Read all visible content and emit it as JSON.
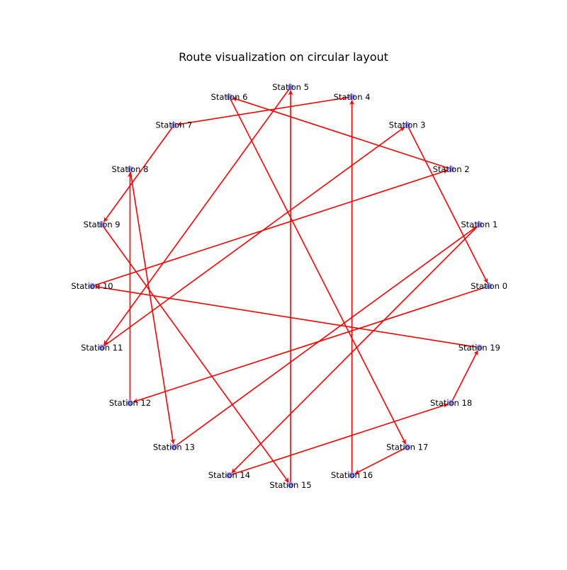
{
  "title": "Route visualization on circular layout",
  "colors": {
    "node_fill": "#8080ff",
    "edge": "#ff0000",
    "background": "#ffffff"
  },
  "layout": "circular",
  "nodes": [
    "Station 0",
    "Station 1",
    "Station 2",
    "Station 3",
    "Station 4",
    "Station 5",
    "Station 6",
    "Station 7",
    "Station 8",
    "Station 9",
    "Station 10",
    "Station 11",
    "Station 12",
    "Station 13",
    "Station 14",
    "Station 15",
    "Station 16",
    "Station 17",
    "Station 18",
    "Station 19"
  ],
  "route": [
    [
      0,
      12
    ],
    [
      12,
      8
    ],
    [
      8,
      13
    ],
    [
      13,
      1
    ],
    [
      1,
      14
    ],
    [
      14,
      18
    ],
    [
      18,
      19
    ],
    [
      19,
      10
    ],
    [
      10,
      2
    ],
    [
      2,
      6
    ],
    [
      6,
      17
    ],
    [
      17,
      16
    ],
    [
      16,
      4
    ],
    [
      4,
      7
    ],
    [
      7,
      9
    ],
    [
      9,
      15
    ],
    [
      15,
      5
    ],
    [
      5,
      11
    ],
    [
      11,
      3
    ],
    [
      3,
      0
    ]
  ]
}
